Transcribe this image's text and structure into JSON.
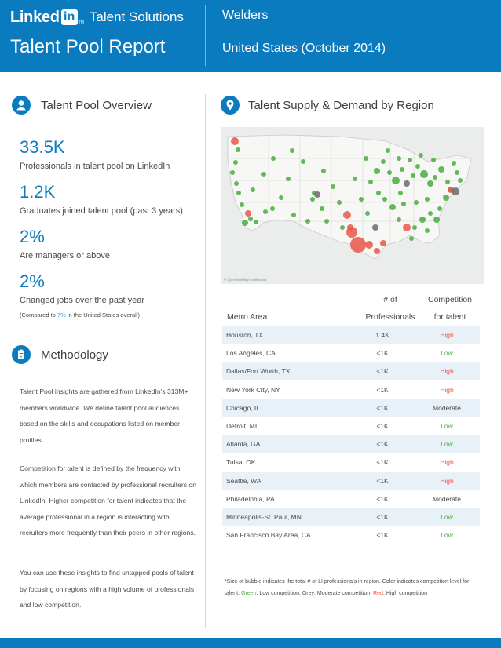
{
  "header": {
    "logo_text": "Linked",
    "logo_in": "in",
    "logo_tm": "TM",
    "product": "Talent Solutions",
    "report_title": "Talent Pool Report",
    "occupation": "Welders",
    "region": "United States (October 2014)"
  },
  "overview": {
    "title": "Talent Pool Overview",
    "icon": "person-icon",
    "stats": [
      {
        "value": "33.5K",
        "label": "Professionals in talent pool on LinkedIn"
      },
      {
        "value": "1.2K",
        "label": "Graduates joined talent pool (past 3 years)"
      },
      {
        "value": "2%",
        "label": "Are managers or above"
      },
      {
        "value": "2%",
        "label": "Changed jobs over the past year"
      }
    ],
    "note_prefix": "(Compared to ",
    "note_value": "7%",
    "note_suffix": " in the United States overall)"
  },
  "methodology": {
    "title": "Methodology",
    "icon": "clipboard-icon",
    "paragraphs": [
      "Talent Pool insights are gathered from LinkedIn's 313M+ members worldwide. We define talent pool audiences based on the skills and occupations listed on member profiles.",
      "Competition for talent is defined by the frequency with which members are contacted by professional recruiters on LinkedIn. Higher competition for talent indicates that the average professional in a region is interacting with recruiters more frequently than their peers in other regions.",
      "You can use these insights to find untapped pools of talent by focusing on regions with a high volume of professionals and low competition."
    ]
  },
  "supply_demand": {
    "title": "Talent Supply & Demand by Region",
    "icon": "map-pin-icon",
    "map_credit": "© OpenStreetMap contributors",
    "colors": {
      "high": "#e8574a",
      "low": "#49ad3e",
      "moderate": "#6b6b6b",
      "accent": "#0b7bbf"
    }
  },
  "table": {
    "headers": {
      "metro": "Metro Area",
      "pros_line1": "# of",
      "pros_line2": "Professionals",
      "comp_line1": "Competition",
      "comp_line2": "for talent"
    },
    "rows": [
      {
        "metro": "Houston, TX",
        "professionals": "1.4K",
        "competition": "High",
        "level": "high"
      },
      {
        "metro": "Los Angeles, CA",
        "professionals": "<1K",
        "competition": "Low",
        "level": "low"
      },
      {
        "metro": "Dallas/Fort Worth, TX",
        "professionals": "<1K",
        "competition": "High",
        "level": "high"
      },
      {
        "metro": "New York City, NY",
        "professionals": "<1K",
        "competition": "High",
        "level": "high"
      },
      {
        "metro": "Chicago, IL",
        "professionals": "<1K",
        "competition": "Moderate",
        "level": "mod"
      },
      {
        "metro": "Detroit, MI",
        "professionals": "<1K",
        "competition": "Low",
        "level": "low"
      },
      {
        "metro": "Atlanta, GA",
        "professionals": "<1K",
        "competition": "Low",
        "level": "low"
      },
      {
        "metro": "Tulsa, OK",
        "professionals": "<1K",
        "competition": "High",
        "level": "high"
      },
      {
        "metro": "Seattle, WA",
        "professionals": "<1K",
        "competition": "High",
        "level": "high"
      },
      {
        "metro": "Philadelphia, PA",
        "professionals": "<1K",
        "competition": "Moderate",
        "level": "mod"
      },
      {
        "metro": "Minneapolis-St. Paul, MN",
        "professionals": "<1K",
        "competition": "Low",
        "level": "low"
      },
      {
        "metro": "San Francisco Bay Area, CA",
        "professionals": "<1K",
        "competition": "Low",
        "level": "low"
      }
    ]
  },
  "footnote": {
    "part1": "*Size of bubble indicates the total # of LI professionals in region. Color indicates competition level for talent. ",
    "green": "Green",
    "part2": ": Low competition, Grey: Moderate competition, ",
    "red": "Red",
    "part3": ": High competition"
  }
}
